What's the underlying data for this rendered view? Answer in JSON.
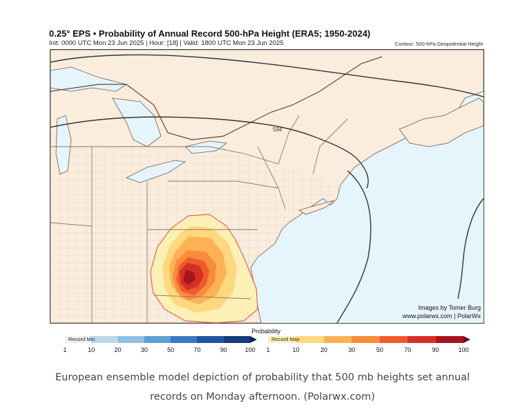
{
  "map": {
    "title": "0.25° EPS • Probability of Annual Record 500-hPa Height (ERA5; 1950-2024)",
    "subtitle": "Init: 0000 UTC Mon 23 Jun 2025 | Hour: [18] | Valid: 1800 UTC Mon 23 Jun 2025",
    "contour_note": "Contour: 500-hPa Geopotential Height",
    "contour_label": "594",
    "credit_line1": "Images by Tomer Burg",
    "credit_line2": "www.polarwx.com | PolarWx"
  },
  "legend": {
    "title": "Probability",
    "min_label": "Record Min",
    "max_label": "Record Max",
    "ticks": [
      "1",
      "10",
      "20",
      "30",
      "50",
      "70",
      "90",
      "100"
    ],
    "min_colors": [
      "#f0f0f0",
      "#bcd7ec",
      "#8fbfe2",
      "#5f9fd3",
      "#3a78c0",
      "#1f55a3",
      "#163a7a",
      "#0d2457"
    ],
    "max_colors": [
      "#fdf0b5",
      "#fed87f",
      "#fcb155",
      "#f88b3c",
      "#ef5b2c",
      "#d62f26",
      "#a8141f",
      "#6d0a14"
    ]
  },
  "caption": {
    "line1": "European ensemble model depiction of probability that 500 mb heights set annual",
    "line2": "records on Monday afternoon. (Polarwx.com)"
  }
}
